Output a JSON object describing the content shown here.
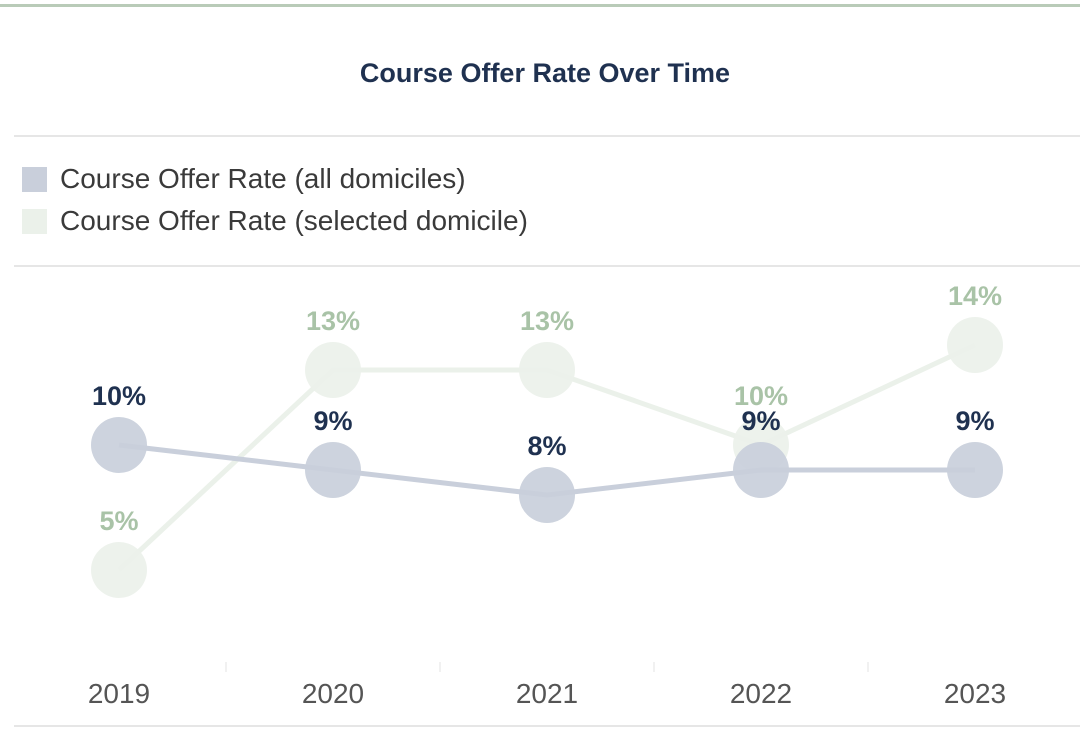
{
  "chart_data": {
    "type": "line",
    "title": "Course Offer Rate Over Time",
    "categories": [
      "2019",
      "2020",
      "2021",
      "2022",
      "2023"
    ],
    "series": [
      {
        "name": "Course Offer Rate (all domiciles)",
        "color": "#c9cfdb",
        "label_color": "#1f3150",
        "values": [
          10,
          9,
          8,
          9,
          9
        ],
        "labels": [
          "10%",
          "9%",
          "8%",
          "9%",
          "9%"
        ]
      },
      {
        "name": "Course Offer Rate (selected domicile)",
        "color": "#ebf1ea",
        "label_color": "#a9c3a7",
        "values": [
          5,
          13,
          13,
          10,
          14
        ],
        "labels": [
          "5%",
          "13%",
          "13%",
          "10%",
          "14%"
        ]
      }
    ],
    "xlabel": "",
    "ylabel": "",
    "ylim": [
      3,
      15
    ],
    "legend": "top-left",
    "grid": false
  }
}
